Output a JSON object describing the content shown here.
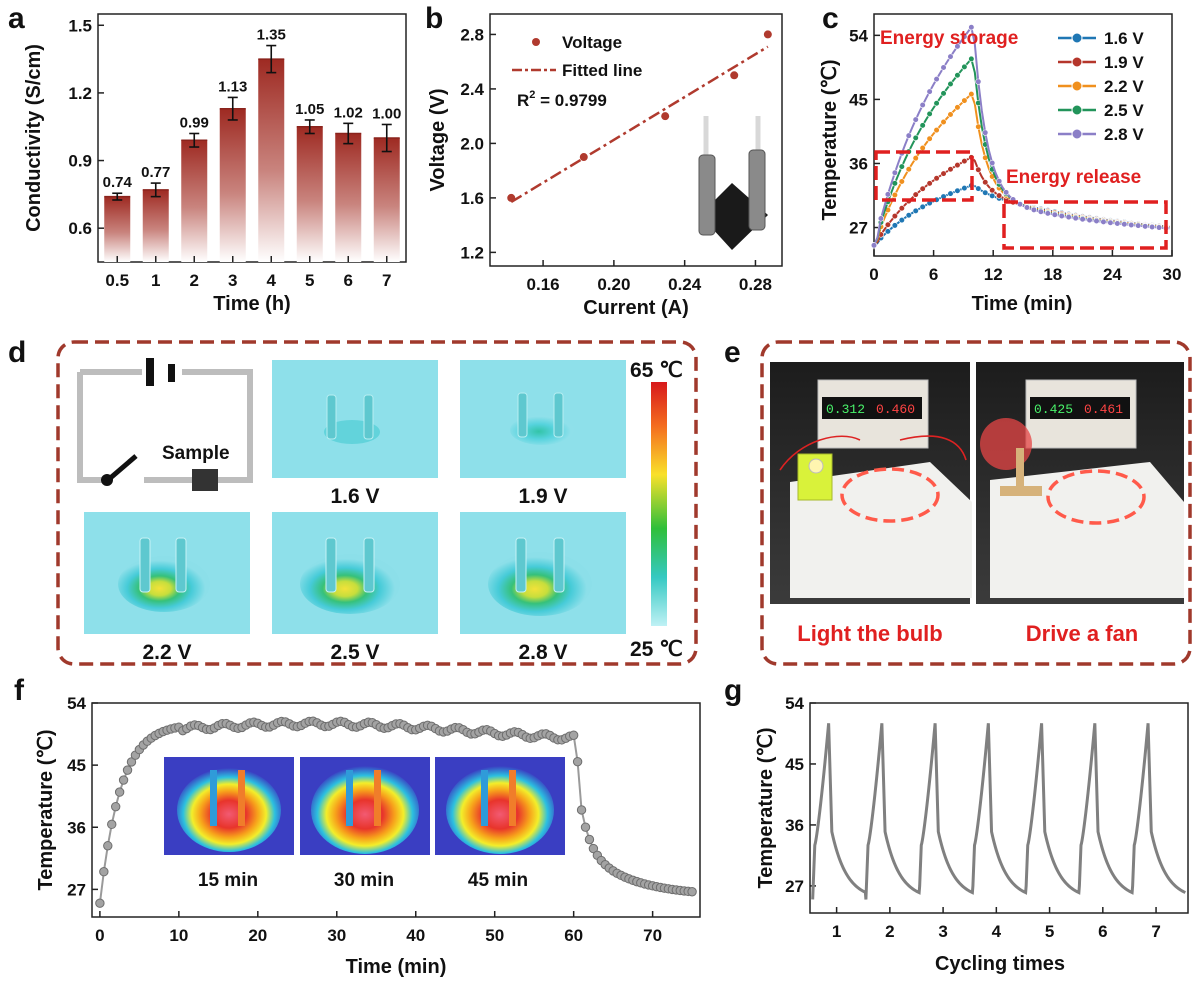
{
  "panel_letters": [
    "a",
    "b",
    "c",
    "d",
    "e",
    "f",
    "g"
  ],
  "chart_data": [
    {
      "panel": "a",
      "type": "bar",
      "categories": [
        "0.5",
        "1",
        "2",
        "3",
        "4",
        "5",
        "6",
        "7"
      ],
      "values": [
        0.74,
        0.77,
        0.99,
        1.13,
        1.35,
        1.05,
        1.02,
        1.0
      ],
      "value_labels": [
        "0.74",
        "0.77",
        "0.99",
        "1.13",
        "1.35",
        "1.05",
        "1.02",
        "1.00"
      ],
      "errors": [
        0.015,
        0.03,
        0.03,
        0.05,
        0.06,
        0.03,
        0.045,
        0.06
      ],
      "xlabel": "Time (h)",
      "ylabel": "Conductivity (S/cm)",
      "ylim": [
        0.45,
        1.55
      ],
      "yticks": [
        "0.6",
        "0.9",
        "1.2",
        "1.5"
      ],
      "yticks_num": [
        0.6,
        0.9,
        1.2,
        1.5
      ],
      "bar_color": "#9e2a22"
    },
    {
      "panel": "b",
      "type": "scatter",
      "x": [
        0.142,
        0.183,
        0.229,
        0.268,
        0.287
      ],
      "y": [
        1.6,
        1.9,
        2.2,
        2.5,
        2.8
      ],
      "fit": {
        "x": [
          0.142,
          0.287
        ],
        "y": [
          1.57,
          2.71
        ]
      },
      "xlabel": "Current (A)",
      "ylabel": "Voltage (V)",
      "xlim": [
        0.13,
        0.295
      ],
      "ylim": [
        1.1,
        2.95
      ],
      "xticks": [
        "0.16",
        "0.20",
        "0.24",
        "0.28"
      ],
      "xticks_num": [
        0.16,
        0.2,
        0.24,
        0.28
      ],
      "yticks": [
        "1.2",
        "1.6",
        "2.0",
        "2.4",
        "2.8"
      ],
      "yticks_num": [
        1.2,
        1.6,
        2.0,
        2.4,
        2.8
      ],
      "legend": [
        "Voltage",
        "Fitted line"
      ],
      "annotation_r2": "R",
      "annotation_sup": "2",
      "annotation_value": " = 0.9799",
      "color": "#b03a2e"
    },
    {
      "panel": "c",
      "type": "line",
      "xlabel": "Time (min)",
      "ylabel": "Temperature (℃)",
      "xlim": [
        0,
        30
      ],
      "ylim": [
        23,
        57
      ],
      "xticks": [
        "0",
        "6",
        "12",
        "18",
        "24",
        "30"
      ],
      "xticks_num": [
        0,
        6,
        12,
        18,
        24,
        30
      ],
      "yticks": [
        "27",
        "36",
        "45",
        "54"
      ],
      "yticks_num": [
        27,
        36,
        45,
        54
      ],
      "annotations": [
        "Energy storage",
        "Energy release"
      ],
      "series": [
        {
          "name": "1.6 V",
          "color": "#1f77b4",
          "peak": 33
        },
        {
          "name": "1.9 V",
          "color": "#b5362b",
          "peak": 37
        },
        {
          "name": "2.2 V",
          "color": "#f0901e",
          "peak": 46
        },
        {
          "name": "2.5 V",
          "color": "#22945a",
          "peak": 51
        },
        {
          "name": "2.8 V",
          "color": "#8b7fc7",
          "peak": 55.5
        }
      ]
    },
    {
      "panel": "f",
      "type": "line",
      "xlabel": "Time (min)",
      "ylabel": "Temperature (℃)",
      "xlim": [
        -1,
        76
      ],
      "ylim": [
        23,
        54
      ],
      "xticks": [
        "0",
        "10",
        "20",
        "30",
        "40",
        "50",
        "60",
        "70"
      ],
      "xticks_num": [
        0,
        10,
        20,
        30,
        40,
        50,
        60,
        70
      ],
      "yticks": [
        "27",
        "36",
        "45",
        "54"
      ],
      "yticks_num": [
        27,
        36,
        45,
        54
      ],
      "inset_labels": [
        "15 min",
        "30 min",
        "45 min"
      ],
      "color": "#8f8f8f"
    },
    {
      "panel": "g",
      "type": "line",
      "xlabel": "Cycling times",
      "ylabel": "Temperature (℃)",
      "xlim": [
        0.5,
        7.6
      ],
      "ylim": [
        23,
        54
      ],
      "xticks": [
        "1",
        "2",
        "3",
        "4",
        "5",
        "6",
        "7"
      ],
      "xticks_num": [
        1,
        2,
        3,
        4,
        5,
        6,
        7
      ],
      "yticks": [
        "27",
        "36",
        "45",
        "54"
      ],
      "yticks_num": [
        27,
        36,
        45,
        54
      ],
      "color": "#808080"
    }
  ],
  "panel_d": {
    "circuit_label": "Sample",
    "voltages": [
      "1.6 V",
      "1.9 V",
      "2.2 V",
      "2.5 V",
      "2.8 V"
    ],
    "colorbar_max": "65 ℃",
    "colorbar_min": "25 ℃"
  },
  "panel_e": {
    "left_caption": "Light the bulb",
    "right_caption": "Drive a fan",
    "left_display": [
      "0.312",
      "0.460"
    ],
    "right_display": [
      "0.425",
      "0.461"
    ]
  }
}
